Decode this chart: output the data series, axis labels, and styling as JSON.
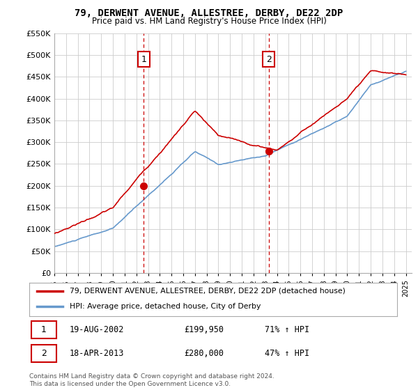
{
  "title": "79, DERWENT AVENUE, ALLESTREE, DERBY, DE22 2DP",
  "subtitle": "Price paid vs. HM Land Registry's House Price Index (HPI)",
  "legend_line1": "79, DERWENT AVENUE, ALLESTREE, DERBY, DE22 2DP (detached house)",
  "legend_line2": "HPI: Average price, detached house, City of Derby",
  "table_row1": [
    "1",
    "19-AUG-2002",
    "£199,950",
    "71% ↑ HPI"
  ],
  "table_row2": [
    "2",
    "18-APR-2013",
    "£280,000",
    "47% ↑ HPI"
  ],
  "footnote": "Contains HM Land Registry data © Crown copyright and database right 2024.\nThis data is licensed under the Open Government Licence v3.0.",
  "sale1_date": 2002.63,
  "sale1_price": 199950,
  "sale2_date": 2013.29,
  "sale2_price": 280000,
  "vline1": 2002.63,
  "vline2": 2013.29,
  "ylim": [
    0,
    550000
  ],
  "xlim_start": 1995.0,
  "xlim_end": 2025.5,
  "red_color": "#cc0000",
  "blue_color": "#6699cc",
  "vline_color": "#cc0000",
  "background_color": "#ffffff",
  "grid_color": "#cccccc"
}
